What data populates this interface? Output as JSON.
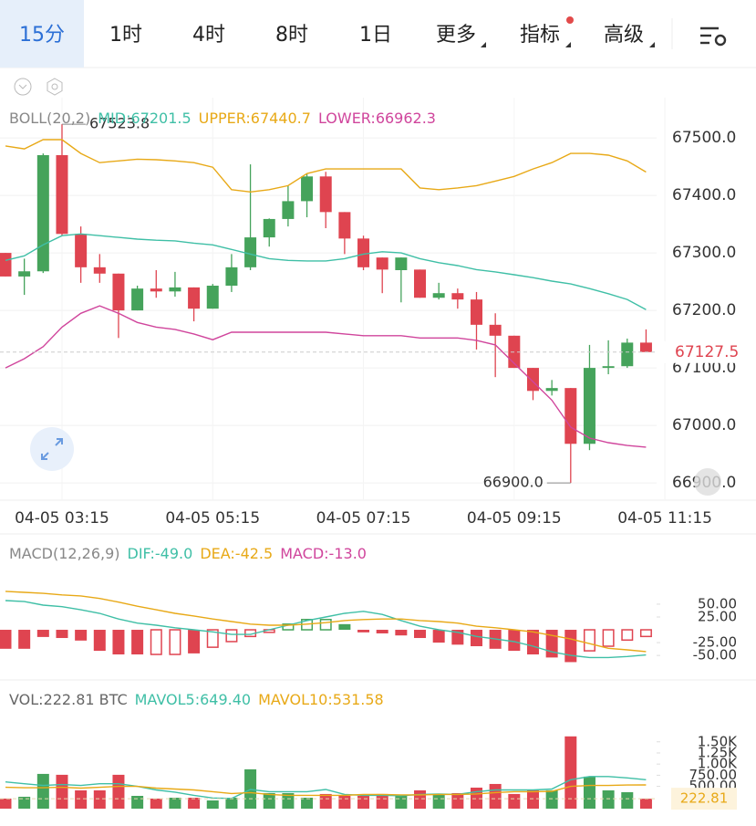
{
  "toolbar": {
    "tabs": [
      "15分",
      "1时",
      "4时",
      "8时",
      "1日",
      "更多",
      "指标",
      "高级"
    ],
    "active": 0
  },
  "chart_data": [
    {
      "type": "candlestick",
      "title": "BOLL(20,2)",
      "up_color": "#45a35b",
      "down_color": "#df4450",
      "open": [
        67300,
        67259,
        67268,
        67470,
        67333,
        67275,
        67264,
        67200,
        67238,
        67233,
        67240,
        67203,
        67243,
        67275,
        67327,
        67359,
        67390,
        67433,
        67371,
        67325,
        67292,
        67270,
        67271,
        67222,
        67230,
        67219,
        67175,
        67156,
        67100,
        67060,
        67065,
        66968,
        67100,
        67103,
        67144
      ],
      "high": [
        67300,
        67290,
        67473,
        67523.8,
        67346,
        67298,
        67264,
        67243,
        67270,
        67267,
        67240,
        67246,
        67298,
        67454,
        67360,
        67417,
        67438,
        67441,
        67371,
        67330,
        67292,
        67292,
        67271,
        67248,
        67238,
        67232,
        67195,
        67156,
        67100,
        67079,
        67065,
        67140,
        67148,
        67151,
        67167
      ],
      "low": [
        67259,
        67227,
        67265,
        67330,
        67248,
        67248,
        67152,
        67200,
        67222,
        67224,
        67181,
        67203,
        67232,
        67270,
        67311,
        67346,
        67362,
        67343,
        67298,
        67270,
        67230,
        67214,
        67222,
        67219,
        67203,
        67132,
        67084,
        67100,
        67044,
        67052,
        66900,
        66957,
        67089,
        67100,
        67127.5
      ],
      "close": [
        67259,
        67268,
        67470,
        67333,
        67275,
        67264,
        67200,
        67238,
        67233,
        67240,
        67203,
        67243,
        67275,
        67327,
        67359,
        67390,
        67433,
        67371,
        67325,
        67275,
        67271,
        67292,
        67222,
        67230,
        67219,
        67175,
        67156,
        67100,
        67060,
        67065,
        66968,
        67100,
        67103,
        67144,
        67127.5
      ],
      "series": [
        {
          "name": "MID:67201.5",
          "color": "#3fbfa6",
          "values": [
            67287,
            67295,
            67314,
            67330,
            67333,
            67330,
            67327,
            67324,
            67322,
            67321,
            67317,
            67314,
            67306,
            67298,
            67290,
            67287,
            67286,
            67286,
            67290,
            67298,
            67302,
            67300,
            67290,
            67283,
            67278,
            67271,
            67267,
            67262,
            67257,
            67251,
            67246,
            67238,
            67229,
            67219,
            67201.5
          ]
        },
        {
          "name": "UPPER:67440.7",
          "color": "#e8a917",
          "values": [
            67486,
            67481,
            67497,
            67497,
            67473,
            67457,
            67460,
            67463,
            67462,
            67460,
            67457,
            67449,
            67410,
            67406,
            67410,
            67417,
            67438,
            67446,
            67446,
            67446,
            67446,
            67446,
            67413,
            67410,
            67413,
            67417,
            67425,
            67433,
            67446,
            67457,
            67473,
            67473,
            67470,
            67460,
            67440.7
          ]
        },
        {
          "name": "LOWER:66962.3",
          "color": "#d0459c",
          "values": [
            67100,
            67116,
            67137,
            67171,
            67195,
            67208,
            67195,
            67179,
            67171,
            67167,
            67159,
            67149,
            67162,
            67162,
            67162,
            67162,
            67162,
            67162,
            67159,
            67156,
            67156,
            67156,
            67152,
            67152,
            67152,
            67148,
            67140,
            67108,
            67076,
            67044,
            66997,
            66978,
            66970,
            66965,
            66962.3
          ]
        }
      ],
      "ylim": [
        66870,
        67570
      ],
      "yticks": [
        {
          "value": 66900,
          "label": "66900.0"
        },
        {
          "value": 67000,
          "label": "67000.0"
        },
        {
          "value": 67100,
          "label": "67100.0"
        },
        {
          "value": 67200,
          "label": "67200.0"
        },
        {
          "value": 67300,
          "label": "67300.0"
        },
        {
          "value": 67400,
          "label": "67400.0"
        },
        {
          "value": 67500,
          "label": "67500.0"
        }
      ],
      "xticks": [
        {
          "value": 3,
          "label": "04-05 03:15"
        },
        {
          "value": 11,
          "label": "04-05 05:15"
        },
        {
          "value": 19,
          "label": "04-05 07:15"
        },
        {
          "value": 27,
          "label": "04-05 09:15"
        },
        {
          "value": 35,
          "label": "04-05 11:15"
        }
      ],
      "max_marker": {
        "value": 67523.8,
        "label": "67523.8"
      },
      "min_marker": {
        "value": 66900,
        "label": "66900.0"
      },
      "last_price": {
        "value": 67127.5,
        "label": "67127.5"
      },
      "grid": true
    },
    {
      "type": "macd",
      "title": "MACD(12,26,9)",
      "name": "MACD:-13.0",
      "color": "#d0459c",
      "up_color": "#45a35b",
      "down_color": "#df4450",
      "values": [
        -37,
        -37,
        -14,
        -16,
        -21,
        -41,
        -48,
        -48,
        -48,
        -48,
        -46,
        -34,
        -23,
        -13,
        -5,
        11,
        20,
        20,
        11,
        -5,
        -7,
        -11,
        -16,
        -25,
        -29,
        -32,
        -37,
        -41,
        -48,
        -54,
        -63,
        -41,
        -32,
        -20,
        -13
      ],
      "hollow": [
        false,
        false,
        false,
        false,
        false,
        false,
        false,
        false,
        true,
        true,
        false,
        true,
        true,
        true,
        true,
        true,
        true,
        true,
        false,
        false,
        false,
        false,
        false,
        false,
        false,
        false,
        false,
        false,
        false,
        false,
        false,
        true,
        true,
        true,
        true
      ],
      "series": [
        {
          "name": "DIF:-49.0",
          "color": "#3fbfa6",
          "values": [
            57,
            55,
            48,
            45,
            39,
            32,
            21,
            13,
            9,
            4,
            0,
            -4,
            -9,
            -9,
            0,
            9,
            18,
            25,
            32,
            36,
            30,
            18,
            7,
            0,
            -5,
            -13,
            -18,
            -23,
            -32,
            -43,
            -50,
            -54,
            -54,
            -52,
            -49
          ]
        },
        {
          "name": "DEA:-42.5",
          "color": "#e8a917",
          "values": [
            75,
            73,
            71,
            68,
            66,
            61,
            54,
            46,
            39,
            32,
            27,
            21,
            16,
            11,
            9,
            9,
            11,
            14,
            18,
            20,
            21,
            21,
            18,
            16,
            13,
            7,
            4,
            0,
            -4,
            -11,
            -18,
            -27,
            -36,
            -39,
            -42.5
          ]
        }
      ],
      "ylim": [
        -80,
        89
      ],
      "yticks": [
        {
          "value": 50,
          "label": "50.00"
        },
        {
          "value": 25,
          "label": "25.00"
        },
        {
          "value": -25,
          "label": "-25.00"
        },
        {
          "value": -50,
          "label": "-50.00"
        }
      ]
    },
    {
      "type": "volume",
      "title": "VOL:222.81 BTC",
      "values": [
        226,
        267,
        780,
        760,
        411,
        411,
        760,
        287,
        226,
        246,
        246,
        185,
        246,
        883,
        349,
        349,
        246,
        329,
        287,
        287,
        329,
        287,
        411,
        329,
        349,
        472,
        554,
        329,
        411,
        411,
        1622,
        719,
        411,
        370,
        222.81
      ],
      "series": [
        {
          "name": "MAVOL5:649.40",
          "color": "#3fbfa6",
          "values": [
            600,
            560,
            520,
            540,
            520,
            560,
            560,
            500,
            420,
            370,
            300,
            240,
            230,
            430,
            380,
            380,
            380,
            430,
            320,
            300,
            300,
            290,
            320,
            330,
            320,
            380,
            420,
            420,
            420,
            440,
            650,
            720,
            720,
            690,
            649.4
          ]
        },
        {
          "name": "MAVOL10:531.58",
          "color": "#e8a917",
          "values": [
            480,
            470,
            470,
            480,
            460,
            480,
            500,
            500,
            460,
            440,
            420,
            380,
            340,
            360,
            320,
            300,
            300,
            300,
            300,
            320,
            320,
            310,
            310,
            320,
            320,
            330,
            360,
            380,
            380,
            390,
            500,
            520,
            520,
            530,
            531.58
          ]
        }
      ],
      "ylim": [
        0,
        1700
      ],
      "yticks": [
        {
          "value": 500,
          "label": "500.00"
        },
        {
          "value": 750,
          "label": "750.00"
        },
        {
          "value": 1000,
          "label": "1.00K"
        },
        {
          "value": 1250,
          "label": "1.25K"
        },
        {
          "value": 1500,
          "label": "1.50K"
        }
      ],
      "last": {
        "value": 222.81,
        "label": "222.81"
      }
    }
  ]
}
